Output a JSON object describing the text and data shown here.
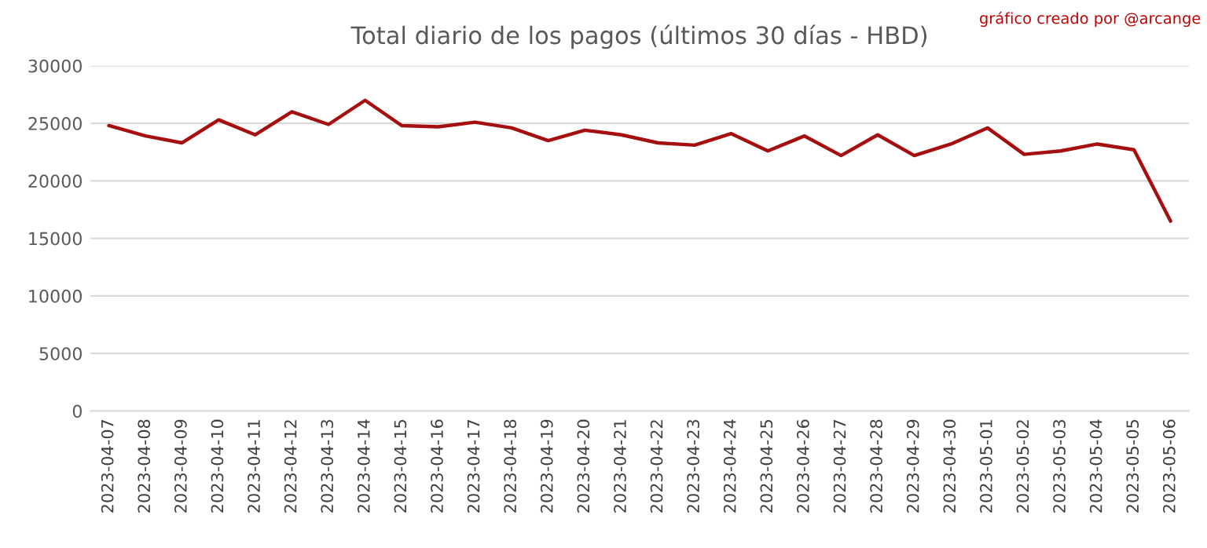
{
  "chart_data": {
    "type": "line",
    "title": "Total diario de los pagos (últimos 30 días - HBD)",
    "annotations": [
      "gráfico creado por @arcange"
    ],
    "categories": [
      "2023-04-07",
      "2023-04-08",
      "2023-04-09",
      "2023-04-10",
      "2023-04-11",
      "2023-04-12",
      "2023-04-13",
      "2023-04-14",
      "2023-04-15",
      "2023-04-16",
      "2023-04-17",
      "2023-04-18",
      "2023-04-19",
      "2023-04-20",
      "2023-04-21",
      "2023-04-22",
      "2023-04-23",
      "2023-04-24",
      "2023-04-25",
      "2023-04-26",
      "2023-04-27",
      "2023-04-28",
      "2023-04-29",
      "2023-04-30",
      "2023-05-01",
      "2023-05-02",
      "2023-05-03",
      "2023-05-04",
      "2023-05-05",
      "2023-05-06"
    ],
    "series": [
      {
        "color": "#a50f0f",
        "values": [
          24800,
          23900,
          23300,
          25300,
          24000,
          26000,
          24900,
          27000,
          24800,
          24700,
          25100,
          24600,
          23500,
          24400,
          24000,
          23300,
          23100,
          24100,
          22600,
          23900,
          22200,
          24000,
          22200,
          23200,
          24600,
          22300,
          22600,
          23200,
          22700,
          16500
        ]
      }
    ],
    "ylim": [
      0,
      30000
    ],
    "yticks": [
      0,
      5000,
      10000,
      15000,
      20000,
      25000,
      30000
    ],
    "grid": "y",
    "legend": false
  }
}
